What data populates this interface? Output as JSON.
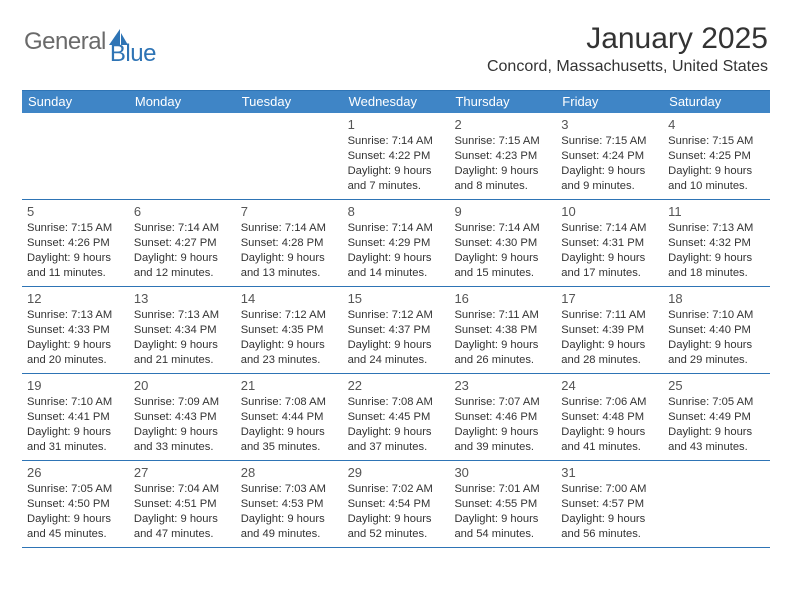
{
  "brand": {
    "text1": "General",
    "text2": "Blue"
  },
  "title": "January 2025",
  "location": "Concord, Massachusetts, United States",
  "colors": {
    "header_bg": "#3f85c6",
    "accent": "#2e74b5",
    "text": "#333333",
    "logo_gray": "#6a6a6a"
  },
  "dow": [
    "Sunday",
    "Monday",
    "Tuesday",
    "Wednesday",
    "Thursday",
    "Friday",
    "Saturday"
  ],
  "weeks": [
    [
      null,
      null,
      null,
      {
        "n": "1",
        "sr": "7:14 AM",
        "ss": "4:22 PM",
        "dl": "9 hours and 7 minutes."
      },
      {
        "n": "2",
        "sr": "7:15 AM",
        "ss": "4:23 PM",
        "dl": "9 hours and 8 minutes."
      },
      {
        "n": "3",
        "sr": "7:15 AM",
        "ss": "4:24 PM",
        "dl": "9 hours and 9 minutes."
      },
      {
        "n": "4",
        "sr": "7:15 AM",
        "ss": "4:25 PM",
        "dl": "9 hours and 10 minutes."
      }
    ],
    [
      {
        "n": "5",
        "sr": "7:15 AM",
        "ss": "4:26 PM",
        "dl": "9 hours and 11 minutes."
      },
      {
        "n": "6",
        "sr": "7:14 AM",
        "ss": "4:27 PM",
        "dl": "9 hours and 12 minutes."
      },
      {
        "n": "7",
        "sr": "7:14 AM",
        "ss": "4:28 PM",
        "dl": "9 hours and 13 minutes."
      },
      {
        "n": "8",
        "sr": "7:14 AM",
        "ss": "4:29 PM",
        "dl": "9 hours and 14 minutes."
      },
      {
        "n": "9",
        "sr": "7:14 AM",
        "ss": "4:30 PM",
        "dl": "9 hours and 15 minutes."
      },
      {
        "n": "10",
        "sr": "7:14 AM",
        "ss": "4:31 PM",
        "dl": "9 hours and 17 minutes."
      },
      {
        "n": "11",
        "sr": "7:13 AM",
        "ss": "4:32 PM",
        "dl": "9 hours and 18 minutes."
      }
    ],
    [
      {
        "n": "12",
        "sr": "7:13 AM",
        "ss": "4:33 PM",
        "dl": "9 hours and 20 minutes."
      },
      {
        "n": "13",
        "sr": "7:13 AM",
        "ss": "4:34 PM",
        "dl": "9 hours and 21 minutes."
      },
      {
        "n": "14",
        "sr": "7:12 AM",
        "ss": "4:35 PM",
        "dl": "9 hours and 23 minutes."
      },
      {
        "n": "15",
        "sr": "7:12 AM",
        "ss": "4:37 PM",
        "dl": "9 hours and 24 minutes."
      },
      {
        "n": "16",
        "sr": "7:11 AM",
        "ss": "4:38 PM",
        "dl": "9 hours and 26 minutes."
      },
      {
        "n": "17",
        "sr": "7:11 AM",
        "ss": "4:39 PM",
        "dl": "9 hours and 28 minutes."
      },
      {
        "n": "18",
        "sr": "7:10 AM",
        "ss": "4:40 PM",
        "dl": "9 hours and 29 minutes."
      }
    ],
    [
      {
        "n": "19",
        "sr": "7:10 AM",
        "ss": "4:41 PM",
        "dl": "9 hours and 31 minutes."
      },
      {
        "n": "20",
        "sr": "7:09 AM",
        "ss": "4:43 PM",
        "dl": "9 hours and 33 minutes."
      },
      {
        "n": "21",
        "sr": "7:08 AM",
        "ss": "4:44 PM",
        "dl": "9 hours and 35 minutes."
      },
      {
        "n": "22",
        "sr": "7:08 AM",
        "ss": "4:45 PM",
        "dl": "9 hours and 37 minutes."
      },
      {
        "n": "23",
        "sr": "7:07 AM",
        "ss": "4:46 PM",
        "dl": "9 hours and 39 minutes."
      },
      {
        "n": "24",
        "sr": "7:06 AM",
        "ss": "4:48 PM",
        "dl": "9 hours and 41 minutes."
      },
      {
        "n": "25",
        "sr": "7:05 AM",
        "ss": "4:49 PM",
        "dl": "9 hours and 43 minutes."
      }
    ],
    [
      {
        "n": "26",
        "sr": "7:05 AM",
        "ss": "4:50 PM",
        "dl": "9 hours and 45 minutes."
      },
      {
        "n": "27",
        "sr": "7:04 AM",
        "ss": "4:51 PM",
        "dl": "9 hours and 47 minutes."
      },
      {
        "n": "28",
        "sr": "7:03 AM",
        "ss": "4:53 PM",
        "dl": "9 hours and 49 minutes."
      },
      {
        "n": "29",
        "sr": "7:02 AM",
        "ss": "4:54 PM",
        "dl": "9 hours and 52 minutes."
      },
      {
        "n": "30",
        "sr": "7:01 AM",
        "ss": "4:55 PM",
        "dl": "9 hours and 54 minutes."
      },
      {
        "n": "31",
        "sr": "7:00 AM",
        "ss": "4:57 PM",
        "dl": "9 hours and 56 minutes."
      },
      null
    ]
  ],
  "labels": {
    "sunrise": "Sunrise:",
    "sunset": "Sunset:",
    "daylight": "Daylight:"
  }
}
